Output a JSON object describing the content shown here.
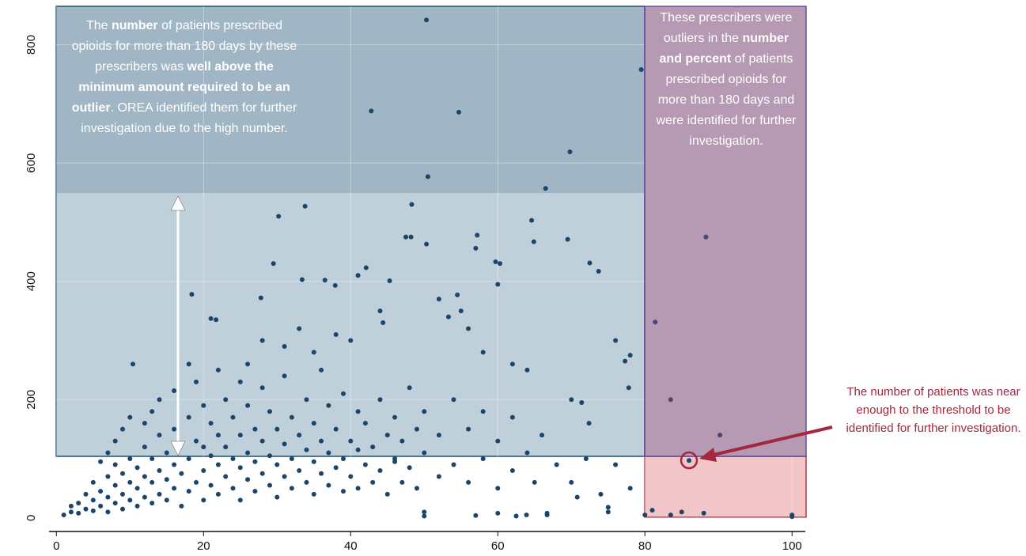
{
  "chart_data": {
    "type": "scatter",
    "color": "#1b4569",
    "xlim": [
      -1,
      101.8
    ],
    "ylim": [
      -23,
      865
    ],
    "xticks": [
      0,
      20,
      40,
      60,
      80,
      100
    ],
    "yticks": [
      0,
      200,
      400,
      600,
      800
    ],
    "grid": true,
    "x": [
      50.3,
      79.5,
      42.8,
      54.7,
      69.8,
      50.5,
      66.5,
      48.3,
      33.8,
      30.2,
      64.6,
      47.5,
      48.2,
      88.3,
      69.5,
      64.9,
      57.2,
      50.3,
      57,
      59.7,
      60.3,
      72.5,
      29.5,
      73.7,
      42.1,
      60,
      45.3,
      18.4,
      27.8,
      41,
      33.4,
      36.5,
      37.9,
      54.5,
      81.4,
      21,
      21.7,
      78,
      83.5,
      90.2,
      10.4,
      86,
      81,
      83.5,
      85,
      88,
      100,
      100,
      80,
      75,
      75,
      70.8,
      66.7,
      66.7,
      63.9,
      62.5,
      60,
      57,
      50,
      50,
      46,
      76,
      77.3,
      77.8,
      70,
      71.4,
      72.4,
      64,
      62,
      58,
      56,
      55,
      52,
      53.3,
      44,
      44.4,
      40,
      38,
      35,
      33,
      31,
      28,
      26,
      25,
      22,
      19,
      18,
      16,
      14,
      13,
      12,
      10,
      9,
      8,
      7,
      6,
      1,
      2,
      2,
      3,
      3,
      4,
      4,
      5,
      5,
      5,
      6,
      6,
      7,
      7,
      7,
      8,
      8,
      8,
      9,
      9,
      9,
      10,
      10,
      10,
      11,
      11,
      11,
      12,
      12,
      12,
      13,
      13,
      13,
      14,
      14,
      14,
      15,
      15,
      15,
      16,
      16,
      16,
      17,
      17,
      17,
      18,
      18,
      18,
      19,
      19,
      20,
      20,
      20,
      20,
      21,
      21,
      21,
      22,
      22,
      22,
      23,
      23,
      23,
      24,
      24,
      24,
      25,
      25,
      25,
      26,
      26,
      26,
      27,
      27,
      27,
      28,
      28,
      28,
      29,
      29,
      29,
      30,
      30,
      30,
      31,
      31,
      31,
      32,
      32,
      32,
      33,
      33,
      34,
      34,
      34,
      35,
      35,
      35,
      36,
      36,
      36,
      37,
      37,
      37,
      38,
      38,
      39,
      39,
      39,
      40,
      40,
      41,
      41,
      41,
      42,
      42,
      43,
      43,
      44,
      44,
      45,
      45,
      46,
      46,
      47,
      47,
      48,
      48,
      49,
      49,
      50,
      50,
      52,
      52,
      54,
      54,
      56,
      56,
      58,
      58,
      60,
      60,
      62,
      62,
      64,
      65,
      66,
      68,
      70,
      72,
      74,
      76,
      78
    ],
    "values": [
      842,
      758,
      688,
      686,
      619,
      577,
      557,
      530,
      527,
      510,
      503,
      475,
      475,
      475,
      471,
      467,
      478,
      463,
      456,
      433,
      430,
      431,
      430,
      417,
      423,
      395,
      401,
      378,
      372,
      410,
      403,
      402,
      393,
      377,
      331,
      337,
      335,
      275,
      200,
      140,
      260,
      97,
      13,
      5,
      10,
      8,
      5,
      2,
      5,
      18,
      10,
      35,
      5,
      8,
      5,
      3,
      8,
      4,
      3,
      10,
      95,
      300,
      265,
      220,
      200,
      195,
      160,
      250,
      260,
      280,
      320,
      350,
      370,
      340,
      350,
      330,
      300,
      310,
      280,
      320,
      290,
      300,
      260,
      230,
      250,
      230,
      260,
      215,
      200,
      180,
      160,
      170,
      150,
      130,
      110,
      95,
      5,
      10,
      20,
      8,
      25,
      15,
      40,
      12,
      30,
      60,
      20,
      45,
      10,
      35,
      70,
      25,
      55,
      90,
      15,
      40,
      75,
      30,
      60,
      100,
      20,
      50,
      85,
      35,
      70,
      120,
      25,
      60,
      100,
      40,
      80,
      140,
      30,
      65,
      110,
      50,
      90,
      150,
      20,
      75,
      125,
      45,
      100,
      170,
      60,
      130,
      30,
      80,
      120,
      190,
      55,
      105,
      160,
      40,
      90,
      140,
      70,
      120,
      200,
      50,
      100,
      170,
      30,
      85,
      140,
      65,
      110,
      190,
      45,
      95,
      150,
      75,
      130,
      220,
      55,
      105,
      180,
      35,
      90,
      150,
      70,
      125,
      240,
      50,
      100,
      170,
      80,
      140,
      60,
      115,
      200,
      40,
      95,
      160,
      75,
      130,
      250,
      55,
      110,
      190,
      85,
      150,
      45,
      100,
      210,
      70,
      130,
      50,
      115,
      180,
      90,
      160,
      60,
      120,
      80,
      200,
      40,
      140,
      100,
      170,
      60,
      130,
      85,
      220,
      50,
      150,
      110,
      180,
      70,
      140,
      90,
      200,
      60,
      150,
      100,
      180,
      50,
      130,
      80,
      170,
      110,
      60,
      140,
      90,
      60,
      100,
      40,
      90,
      50
    ],
    "annotations": [
      {
        "parts": [
          {
            "text": "The "
          },
          {
            "text": "number",
            "bold": true
          },
          {
            "text": " of patients prescribed opioids for more than 180 days by these prescribers was "
          },
          {
            "text": "well above the minimum amount required to be an outlier",
            "bold": true
          },
          {
            "text": ". OREA identified them for further investigation due to the high number."
          }
        ]
      },
      {
        "parts": [
          {
            "text": "These prescribers were outliers in the "
          },
          {
            "text": "number and percent",
            "bold": true
          },
          {
            "text": " of patients prescribed opioids for more than 180 days and were identified for further investigation."
          }
        ]
      },
      {
        "parts": [
          {
            "text": "The number of patients was near enough to the threshold to be identified for further investigation."
          }
        ]
      }
    ]
  }
}
